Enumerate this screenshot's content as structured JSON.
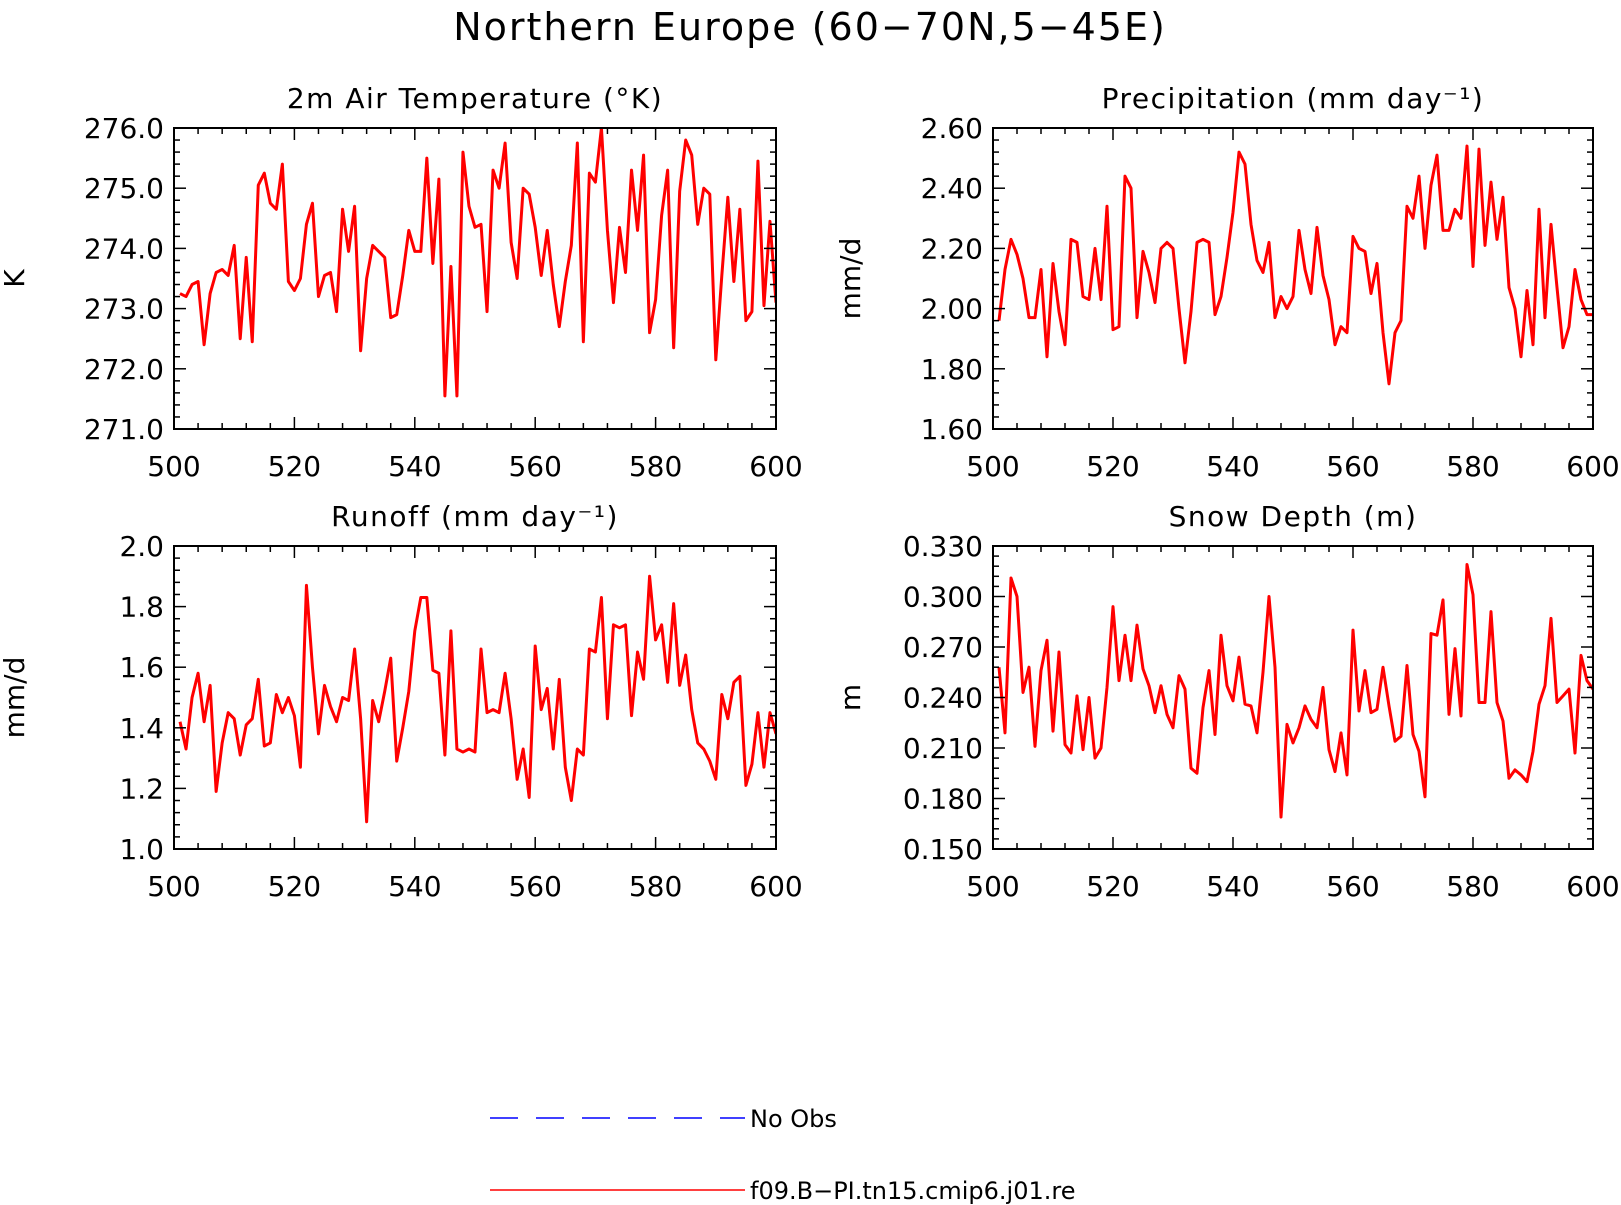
{
  "figure_title": "Northern Europe (60−70N,5−45E)",
  "legend": {
    "entries": [
      {
        "label": "No Obs",
        "color": "#0000ff",
        "dashed": true
      },
      {
        "label": "f09.B−PI.tn15.cmip6.j01.re",
        "color": "#ff0000",
        "dashed": false
      }
    ]
  },
  "chart_data": [
    {
      "type": "line",
      "title": "2m Air Temperature (°K)",
      "xlabel": "",
      "ylabel": "K",
      "xlim": [
        500,
        600
      ],
      "ylim": [
        271.0,
        276.0
      ],
      "xticks": [
        "500",
        "520",
        "540",
        "560",
        "580",
        "600"
      ],
      "yticks": [
        "271.0",
        "272.0",
        "273.0",
        "274.0",
        "275.0",
        "276.0"
      ],
      "x_start": 501,
      "series": [
        {
          "color": "#ff0000",
          "values": [
            273.25,
            273.2,
            273.4,
            273.45,
            272.4,
            273.25,
            273.6,
            273.65,
            273.55,
            274.05,
            272.5,
            273.85,
            272.45,
            275.05,
            275.25,
            274.75,
            274.65,
            275.4,
            273.45,
            273.3,
            273.5,
            274.4,
            274.75,
            273.2,
            273.55,
            273.6,
            272.95,
            274.65,
            273.95,
            274.7,
            272.3,
            273.5,
            274.05,
            273.95,
            273.85,
            272.85,
            272.9,
            273.55,
            274.3,
            273.95,
            273.95,
            275.5,
            273.75,
            275.15,
            271.55,
            273.7,
            271.55,
            275.6,
            274.7,
            274.35,
            274.4,
            272.95,
            275.3,
            275.0,
            275.75,
            274.1,
            273.5,
            275.0,
            274.9,
            274.35,
            273.55,
            274.3,
            273.4,
            272.7,
            273.45,
            274.05,
            275.75,
            272.45,
            275.25,
            275.1,
            276.0,
            274.3,
            273.1,
            274.35,
            273.6,
            275.3,
            274.3,
            275.55,
            272.6,
            273.15,
            274.55,
            275.3,
            272.35,
            274.95,
            275.8,
            275.55,
            274.4,
            275.0,
            274.9,
            272.15,
            273.55,
            274.85,
            273.45,
            274.65,
            272.8,
            272.95,
            275.45,
            273.05,
            274.45,
            273.1
          ]
        }
      ]
    },
    {
      "type": "line",
      "title": "Precipitation (mm day⁻¹)",
      "xlabel": "",
      "ylabel": "mm/d",
      "xlim": [
        500,
        600
      ],
      "ylim": [
        1.6,
        2.6
      ],
      "xticks": [
        "500",
        "520",
        "540",
        "560",
        "580",
        "600"
      ],
      "yticks": [
        "1.60",
        "1.80",
        "2.00",
        "2.20",
        "2.40",
        "2.60"
      ],
      "x_start": 501,
      "series": [
        {
          "color": "#ff0000",
          "values": [
            1.96,
            2.13,
            2.23,
            2.18,
            2.1,
            1.97,
            1.97,
            2.13,
            1.84,
            2.15,
            1.99,
            1.88,
            2.23,
            2.22,
            2.04,
            2.03,
            2.2,
            2.03,
            2.34,
            1.93,
            1.94,
            2.44,
            2.4,
            1.97,
            2.19,
            2.12,
            2.02,
            2.2,
            2.22,
            2.2,
            2.0,
            1.82,
            1.99,
            2.22,
            2.23,
            2.22,
            1.98,
            2.04,
            2.17,
            2.32,
            2.52,
            2.48,
            2.28,
            2.16,
            2.12,
            2.22,
            1.97,
            2.04,
            2.0,
            2.04,
            2.26,
            2.13,
            2.05,
            2.27,
            2.11,
            2.03,
            1.88,
            1.94,
            1.92,
            2.24,
            2.2,
            2.19,
            2.05,
            2.15,
            1.92,
            1.75,
            1.92,
            1.96,
            2.34,
            2.3,
            2.44,
            2.2,
            2.41,
            2.51,
            2.26,
            2.26,
            2.33,
            2.3,
            2.54,
            2.14,
            2.53,
            2.21,
            2.42,
            2.23,
            2.37,
            2.07,
            2.0,
            1.84,
            2.06,
            1.88,
            2.33,
            1.97,
            2.28,
            2.07,
            1.87,
            1.94,
            2.13,
            2.03,
            1.98,
            1.98
          ]
        }
      ]
    },
    {
      "type": "line",
      "title": "Runoff (mm day⁻¹)",
      "xlabel": "",
      "ylabel": "mm/d",
      "xlim": [
        500,
        600
      ],
      "ylim": [
        1.0,
        2.0
      ],
      "xticks": [
        "500",
        "520",
        "540",
        "560",
        "580",
        "600"
      ],
      "yticks": [
        "1.0",
        "1.2",
        "1.4",
        "1.6",
        "1.8",
        "2.0"
      ],
      "x_start": 501,
      "series": [
        {
          "color": "#ff0000",
          "values": [
            1.42,
            1.33,
            1.5,
            1.58,
            1.42,
            1.54,
            1.19,
            1.35,
            1.45,
            1.43,
            1.31,
            1.41,
            1.43,
            1.56,
            1.34,
            1.35,
            1.51,
            1.45,
            1.5,
            1.44,
            1.27,
            1.87,
            1.6,
            1.38,
            1.54,
            1.47,
            1.42,
            1.5,
            1.49,
            1.66,
            1.43,
            1.09,
            1.49,
            1.42,
            1.52,
            1.63,
            1.29,
            1.4,
            1.52,
            1.72,
            1.83,
            1.83,
            1.59,
            1.58,
            1.31,
            1.72,
            1.33,
            1.32,
            1.33,
            1.32,
            1.66,
            1.45,
            1.46,
            1.45,
            1.58,
            1.43,
            1.23,
            1.33,
            1.17,
            1.67,
            1.46,
            1.53,
            1.33,
            1.56,
            1.27,
            1.16,
            1.33,
            1.31,
            1.66,
            1.65,
            1.83,
            1.43,
            1.74,
            1.73,
            1.74,
            1.44,
            1.65,
            1.56,
            1.9,
            1.69,
            1.74,
            1.55,
            1.81,
            1.54,
            1.64,
            1.46,
            1.35,
            1.33,
            1.29,
            1.23,
            1.51,
            1.43,
            1.55,
            1.57,
            1.21,
            1.28,
            1.45,
            1.27,
            1.45,
            1.38
          ]
        }
      ]
    },
    {
      "type": "line",
      "title": "Snow Depth (m)",
      "xlabel": "",
      "ylabel": "m",
      "xlim": [
        500,
        600
      ],
      "ylim": [
        0.15,
        0.33
      ],
      "xticks": [
        "500",
        "520",
        "540",
        "560",
        "580",
        "600"
      ],
      "yticks": [
        "0.150",
        "0.180",
        "0.210",
        "0.240",
        "0.270",
        "0.300",
        "0.330"
      ],
      "x_start": 501,
      "series": [
        {
          "color": "#ff0000",
          "values": [
            0.258,
            0.219,
            0.311,
            0.3,
            0.243,
            0.258,
            0.211,
            0.256,
            0.274,
            0.22,
            0.267,
            0.212,
            0.207,
            0.241,
            0.209,
            0.24,
            0.204,
            0.21,
            0.246,
            0.294,
            0.25,
            0.277,
            0.25,
            0.283,
            0.257,
            0.247,
            0.231,
            0.247,
            0.23,
            0.222,
            0.253,
            0.245,
            0.198,
            0.195,
            0.234,
            0.256,
            0.218,
            0.277,
            0.247,
            0.238,
            0.264,
            0.236,
            0.235,
            0.219,
            0.255,
            0.3,
            0.258,
            0.169,
            0.224,
            0.213,
            0.222,
            0.235,
            0.227,
            0.222,
            0.246,
            0.209,
            0.196,
            0.219,
            0.194,
            0.28,
            0.232,
            0.256,
            0.231,
            0.233,
            0.258,
            0.235,
            0.214,
            0.217,
            0.259,
            0.218,
            0.208,
            0.181,
            0.278,
            0.277,
            0.298,
            0.23,
            0.269,
            0.229,
            0.319,
            0.301,
            0.237,
            0.237,
            0.291,
            0.237,
            0.226,
            0.192,
            0.197,
            0.194,
            0.19,
            0.208,
            0.236,
            0.247,
            0.287,
            0.237,
            0.241,
            0.245,
            0.207,
            0.265,
            0.25,
            0.245
          ]
        }
      ]
    }
  ]
}
